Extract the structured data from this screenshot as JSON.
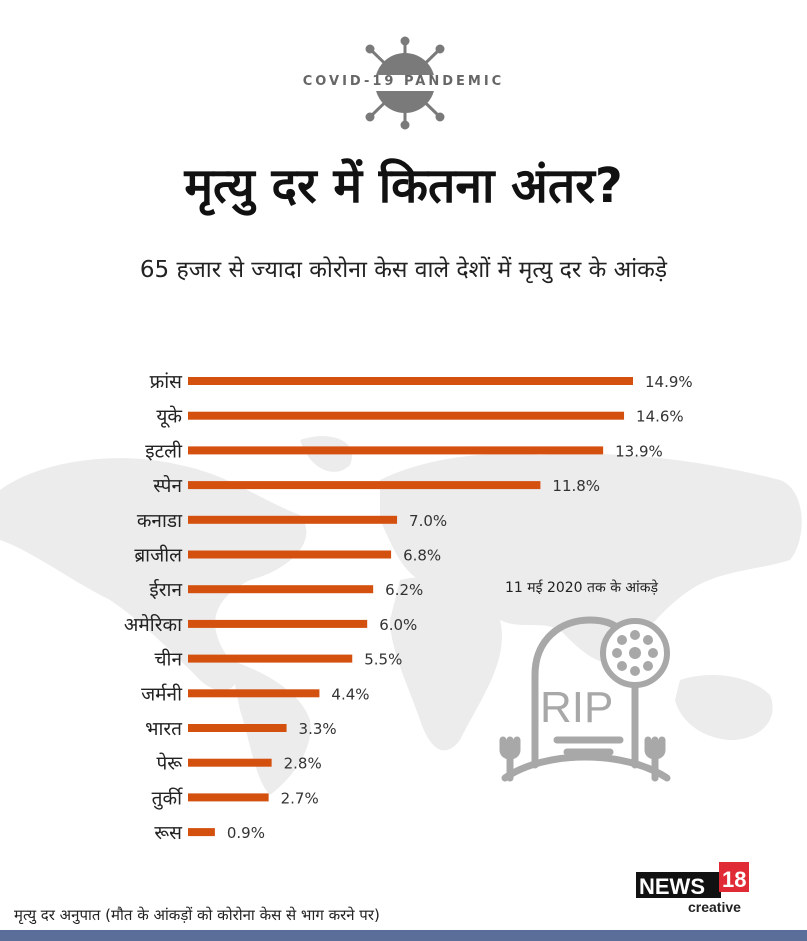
{
  "header": {
    "badge": "COVID-19 PANDEMIC",
    "title": "मृत्यु दर में कितना अंतर?",
    "subtitle": "65 हजार से ज्यादा कोरोना केस वाले देशों में मृत्यु दर के आंकड़े"
  },
  "note": "11 मई 2020 तक के आंकड़े",
  "footnote": "मृत्यु दर अनुपात (मौत के आंकड़ों को कोरोना केस से भाग करने पर)",
  "brand": {
    "name": "NEWS",
    "number": "18",
    "tag": "creative"
  },
  "icons": [
    "coronavirus-icon",
    "world-map",
    "tombstone-rip-icon"
  ],
  "colors": {
    "bar": "#d4500f",
    "bottom_bar": "#5b6e9a",
    "icon": "#a8a8a8"
  },
  "chart_data": {
    "type": "bar",
    "orientation": "horizontal",
    "categories": [
      "फ्रांस",
      "यूके",
      "इटली",
      "स्पेन",
      "कनाडा",
      "ब्राजील",
      "ईरान",
      "अमेरिका",
      "चीन",
      "जर्मनी",
      "भारत",
      "पेरू",
      "तुर्की",
      "रूस"
    ],
    "values": [
      14.9,
      14.6,
      13.9,
      11.8,
      7.0,
      6.8,
      6.2,
      6.0,
      5.5,
      4.4,
      3.3,
      2.8,
      2.7,
      0.9
    ],
    "value_labels": [
      "14.9%",
      "14.6%",
      "13.9%",
      "11.8%",
      "7.0%",
      "6.8%",
      "6.2%",
      "6.0%",
      "5.5%",
      "4.4%",
      "3.3%",
      "2.8%",
      "2.7%",
      "0.9%"
    ],
    "unit": "%",
    "xlim": [
      0,
      14.9
    ],
    "grid": false
  }
}
